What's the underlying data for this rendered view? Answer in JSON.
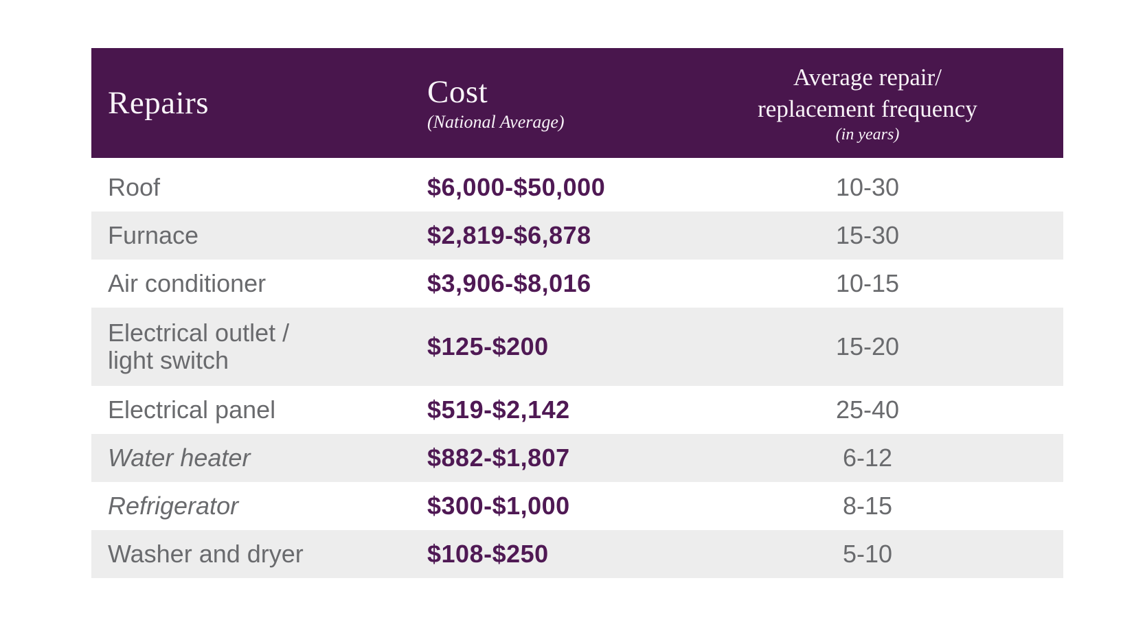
{
  "colors": {
    "header_bg": "#49164d",
    "header_text": "#f8f3f8",
    "cost_text": "#4f1954",
    "body_text": "#696a6d",
    "stripe_bg": "#ededed",
    "page_bg": "#ffffff"
  },
  "chart_data": {
    "type": "table",
    "columns": [
      {
        "label": "Repairs",
        "sub": ""
      },
      {
        "label": "Cost",
        "sub": "(National Average)"
      },
      {
        "label": "Average repair/\nreplacement frequency",
        "sub": "(in years)"
      }
    ],
    "rows": [
      {
        "repair": "Roof",
        "cost": "$6,000-$50,000",
        "frequency": "10-30",
        "italic": false
      },
      {
        "repair": "Furnace",
        "cost": "$2,819-$6,878",
        "frequency": "15-30",
        "italic": false
      },
      {
        "repair": "Air conditioner",
        "cost": "$3,906-$8,016",
        "frequency": "10-15",
        "italic": false
      },
      {
        "repair": "Electrical outlet /\nlight switch",
        "cost": "$125-$200",
        "frequency": "15-20",
        "italic": false
      },
      {
        "repair": "Electrical panel",
        "cost": "$519-$2,142",
        "frequency": "25-40",
        "italic": false
      },
      {
        "repair": "Water heater",
        "cost": "$882-$1,807",
        "frequency": "6-12",
        "italic": true
      },
      {
        "repair": "Refrigerator",
        "cost": "$300-$1,000",
        "frequency": "8-15",
        "italic": true
      },
      {
        "repair": "Washer and dryer",
        "cost": "$108-$250",
        "frequency": "5-10",
        "italic": false
      }
    ]
  }
}
